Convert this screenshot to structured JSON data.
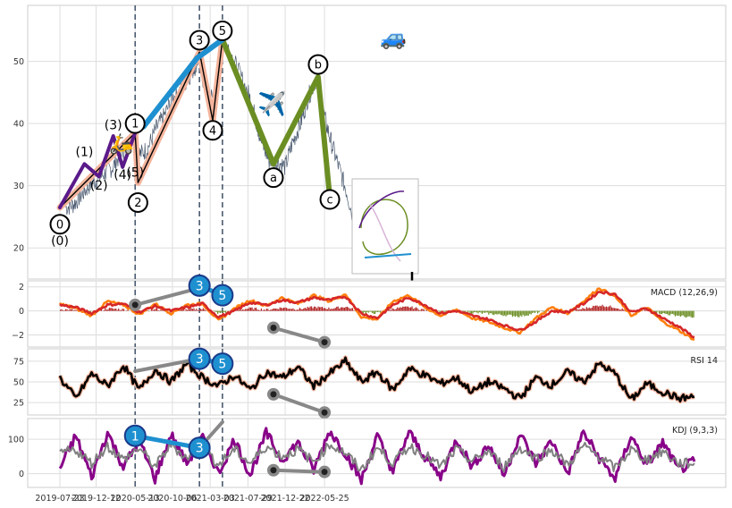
{
  "chart_data": [
    {
      "type": "line",
      "panel": "price",
      "ylim": [
        15,
        59
      ],
      "y_ticks": [
        20,
        30,
        40,
        50
      ],
      "x_ticks": [
        "2019-07-23",
        "2019-12-12",
        "2020-05-13",
        "2020-10-06",
        "2021-03-03",
        "2021-07-29",
        "2021-12-22",
        "2022-05-25"
      ],
      "vertical_markers": [
        "2020-05-13",
        "2021-01-20",
        "2021-04-20"
      ],
      "series": [
        {
          "color": "#4a5a70",
          "x": [
            "2019-08-15",
            "2019-09-15",
            "2019-10-15",
            "2019-11-15",
            "2019-12-15",
            "2020-01-15",
            "2020-02-15",
            "2020-03-15",
            "2020-04-15",
            "2020-05-13",
            "2020-06-01",
            "2020-07-01",
            "2020-08-01",
            "2020-09-01",
            "2020-10-06",
            "2020-11-01",
            "2020-12-01",
            "2021-01-01",
            "2021-01-20",
            "2021-02-01",
            "2021-03-01",
            "2021-03-25",
            "2021-04-20",
            "2021-05-15",
            "2021-06-15",
            "2021-07-29",
            "2021-08-20",
            "2021-09-20",
            "2021-10-20",
            "2021-11-20",
            "2021-12-22",
            "2022-01-20",
            "2022-02-20",
            "2022-03-20",
            "2022-04-20",
            "2022-05-25",
            "2022-06-20",
            "2022-07-20",
            "2022-08-20",
            "2022-09-20",
            "2022-10-20"
          ],
          "values": [
            26.5,
            27,
            28.5,
            30,
            31,
            32,
            33,
            35,
            37,
            38.5,
            35,
            36,
            39,
            41,
            44,
            45,
            47,
            49,
            51,
            47,
            45,
            43,
            54,
            52,
            49,
            45,
            42,
            37,
            34,
            34,
            33,
            37,
            40,
            44,
            47,
            41,
            37,
            33,
            29,
            24,
            20
          ]
        }
      ],
      "waves": [
        {
          "name": "wave-primary-1",
          "color": "#f4b49c",
          "points": [
            [
              "2019-07-23",
              26.5
            ],
            [
              "2020-05-13",
              38.5
            ],
            [
              "2020-05-24",
              30.5
            ],
            [
              "2021-01-20",
              51.5
            ],
            [
              "2021-03-13",
              40.5
            ],
            [
              "2021-04-20",
              53.5
            ]
          ]
        },
        {
          "name": "wave-primary-2",
          "color": "#000000",
          "points": [
            [
              "2019-07-23",
              26.5
            ],
            [
              "2020-05-13",
              38.5
            ],
            [
              "2020-05-24",
              30.5
            ],
            [
              "2021-01-20",
              51.5
            ],
            [
              "2021-03-13",
              40.5
            ],
            [
              "2021-04-20",
              53.5
            ]
          ]
        },
        {
          "name": "wave-minor",
          "color": "#5a1a8a",
          "points": [
            [
              "2019-07-23",
              26.5
            ],
            [
              "2019-10-27",
              33.5
            ],
            [
              "2019-12-23",
              31.5
            ],
            [
              "2020-02-17",
              38
            ],
            [
              "2020-03-25",
              33
            ],
            [
              "2020-05-13",
              38.5
            ]
          ]
        },
        {
          "name": "wave-abc",
          "color": "#6b8e23",
          "points": [
            [
              "2021-04-20",
              53.5
            ],
            [
              "2021-11-06",
              33.5
            ],
            [
              "2022-04-30",
              47.5
            ],
            [
              "2022-06-15",
              28
            ]
          ]
        },
        {
          "name": "wave-blue",
          "color": "#1e90d0",
          "points": [
            [
              "2020-06-15",
              39.5
            ],
            [
              "2021-01-10",
              50.5
            ],
            [
              "2021-04-20",
              53.5
            ]
          ]
        }
      ],
      "wave_labels": [
        {
          "text": "0",
          "x": "2019-07-23",
          "y": 23.8,
          "circled": true
        },
        {
          "text": "(0)",
          "x": "2019-07-23",
          "y": 21.2,
          "circled": false
        },
        {
          "text": "(1)",
          "x": "2019-10-27",
          "y": 35.5,
          "circled": false
        },
        {
          "text": "(2)",
          "x": "2019-12-23",
          "y": 30.1,
          "circled": false
        },
        {
          "text": "(3)",
          "x": "2020-02-17",
          "y": 39.8,
          "circled": false
        },
        {
          "text": "(4)",
          "x": "2020-03-25",
          "y": 31.8,
          "circled": false
        },
        {
          "text": "(5)",
          "x": "2020-05-13",
          "y": 32.2,
          "circled": false
        },
        {
          "text": "1",
          "x": "2020-05-13",
          "y": 40,
          "circled": true
        },
        {
          "text": "2",
          "x": "2020-05-24",
          "y": 27.3,
          "circled": true
        },
        {
          "text": "3",
          "x": "2021-01-20",
          "y": 53.4,
          "circled": true
        },
        {
          "text": "4",
          "x": "2021-03-13",
          "y": 38.9,
          "circled": true
        },
        {
          "text": "5",
          "x": "2021-04-20",
          "y": 54.9,
          "circled": true
        },
        {
          "text": "a",
          "x": "2021-11-06",
          "y": 31.3,
          "circled": true
        },
        {
          "text": "b",
          "x": "2022-04-30",
          "y": 49.5,
          "circled": true
        },
        {
          "text": "c",
          "x": "2022-06-15",
          "y": 27.8,
          "circled": true
        }
      ]
    },
    {
      "type": "line",
      "panel": "macd",
      "title": "MACD (12,26,9)",
      "ylim": [
        -3,
        2.5
      ],
      "y_ticks": [
        "2",
        "0",
        "−2"
      ],
      "series": [
        {
          "color": "#ff7f0e",
          "values": [
            0.6,
            0.2,
            -0.4,
            0.8,
            0.5,
            -0.3,
            0.6,
            -0.2,
            0.5,
            0.6,
            -0.8,
            0.2,
            0.9,
            0.4,
            1.1,
            0.6,
            1.3,
            0.8,
            1.4,
            -0.5,
            -0.7,
            0.8,
            1.3,
            0.3,
            -0.4,
            0.1,
            -0.6,
            -0.9,
            -1.4,
            -1.8,
            -0.6,
            0.3,
            -0.2,
            0.8,
            1.9,
            1.2,
            -0.4,
            0.3,
            -0.9,
            -1.6,
            -2.4
          ]
        },
        {
          "color": "#d62728",
          "values": [
            0.5,
            0.3,
            -0.2,
            0.5,
            0.6,
            -0.1,
            0.4,
            0,
            0.3,
            0.6,
            -0.5,
            0,
            0.7,
            0.5,
            0.9,
            0.7,
            1.1,
            0.9,
            1.2,
            -0.2,
            -0.6,
            0.5,
            1.1,
            0.5,
            -0.2,
            0,
            -0.4,
            -0.7,
            -1.2,
            -1.6,
            -0.9,
            0,
            -0.1,
            0.6,
            1.6,
            1.4,
            -0.1,
            0.2,
            -0.6,
            -1.3,
            -2.2
          ]
        }
      ],
      "trend_lines": [
        {
          "color": "#888888",
          "points": [
            [
              "2020-05-13",
              0.5
            ],
            [
              "2021-01-20",
              1.9
            ]
          ]
        },
        {
          "color": "#1e90d0",
          "points": [
            [
              "2021-01-20",
              2.1
            ],
            [
              "2021-04-20",
              1.3
            ]
          ]
        },
        {
          "color": "#888888",
          "points": [
            [
              "2021-11-06",
              -1.4
            ],
            [
              "2022-05-25",
              -2.6
            ]
          ]
        }
      ],
      "markers": [
        {
          "text": "3",
          "x": "2021-01-20",
          "y": 2.1,
          "style": "blue"
        },
        {
          "text": "5",
          "x": "2021-04-20",
          "y": 1.3,
          "style": "blue"
        },
        {
          "text": "",
          "x": "2020-05-13",
          "y": 0.5,
          "style": "grey"
        },
        {
          "text": "",
          "x": "2021-11-06",
          "y": -1.4,
          "style": "grey"
        },
        {
          "text": "",
          "x": "2022-05-25",
          "y": -2.6,
          "style": "grey"
        }
      ]
    },
    {
      "type": "line",
      "panel": "rsi",
      "title": "RSI 14",
      "ylim": [
        10,
        90
      ],
      "y_ticks": [
        "75",
        "50",
        "25"
      ],
      "series": [
        {
          "color": "#000000",
          "values": [
            55,
            30,
            60,
            45,
            70,
            40,
            65,
            50,
            72,
            55,
            45,
            58,
            40,
            62,
            55,
            68,
            45,
            60,
            75,
            50,
            62,
            40,
            66,
            58,
            48,
            55,
            38,
            50,
            42,
            30,
            55,
            46,
            62,
            50,
            72,
            60,
            28,
            48,
            38,
            30,
            32
          ]
        }
      ],
      "trend_lines": [
        {
          "color": "#888888",
          "points": [
            [
              "2020-05-13",
              63
            ],
            [
              "2021-01-20",
              78
            ]
          ]
        },
        {
          "color": "#1e90d0",
          "points": [
            [
              "2021-01-20",
              78
            ],
            [
              "2021-04-20",
              72
            ]
          ]
        },
        {
          "color": "#888888",
          "points": [
            [
              "2021-11-06",
              35
            ],
            [
              "2022-05-25",
              13
            ]
          ]
        }
      ],
      "markers": [
        {
          "text": "3",
          "x": "2021-01-20",
          "y": 78,
          "style": "blue"
        },
        {
          "text": "5",
          "x": "2021-04-20",
          "y": 72,
          "style": "blue"
        },
        {
          "text": "",
          "x": "2021-11-06",
          "y": 35,
          "style": "grey"
        },
        {
          "text": "",
          "x": "2022-05-25",
          "y": 13,
          "style": "grey"
        }
      ]
    },
    {
      "type": "line",
      "panel": "kdj",
      "title": "KDJ (9,3,3)",
      "ylim": [
        -40,
        160
      ],
      "y_ticks": [
        "100",
        "0"
      ],
      "series": [
        {
          "color": "#880088",
          "values": [
            15,
            110,
            -10,
            120,
            20,
            95,
            -15,
            115,
            30,
            105,
            0,
            100,
            -5,
            118,
            40,
            90,
            10,
            125,
            60,
            -20,
            110,
            5,
            120,
            50,
            -10,
            100,
            20,
            85,
            -5,
            115,
            30,
            95,
            0,
            120,
            45,
            -15,
            110,
            25,
            90,
            10,
            35
          ]
        },
        {
          "color": "#808080",
          "values": [
            60,
            70,
            30,
            80,
            40,
            75,
            20,
            85,
            45,
            80,
            25,
            70,
            30,
            80,
            50,
            70,
            35,
            85,
            60,
            10,
            75,
            30,
            80,
            55,
            20,
            70,
            35,
            65,
            20,
            75,
            45,
            70,
            25,
            80,
            50,
            15,
            70,
            40,
            65,
            30,
            30
          ]
        }
      ],
      "trend_lines": [
        {
          "color": "#1e90d0",
          "points": [
            [
              "2020-05-13",
              110
            ],
            [
              "2021-01-20",
              75
            ]
          ]
        },
        {
          "color": "#888888",
          "points": [
            [
              "2021-01-20",
              75
            ],
            [
              "2021-04-20",
              150
            ]
          ]
        },
        {
          "color": "#888888",
          "points": [
            [
              "2021-11-06",
              10
            ],
            [
              "2022-05-25",
              5
            ]
          ]
        }
      ],
      "markers": [
        {
          "text": "1",
          "x": "2020-05-13",
          "y": 110,
          "style": "blue"
        },
        {
          "text": "3",
          "x": "2021-01-20",
          "y": 75,
          "style": "blue"
        },
        {
          "text": "",
          "x": "2021-11-06",
          "y": 10,
          "style": "grey"
        },
        {
          "text": "",
          "x": "2022-05-25",
          "y": 5,
          "style": "grey"
        }
      ]
    }
  ]
}
